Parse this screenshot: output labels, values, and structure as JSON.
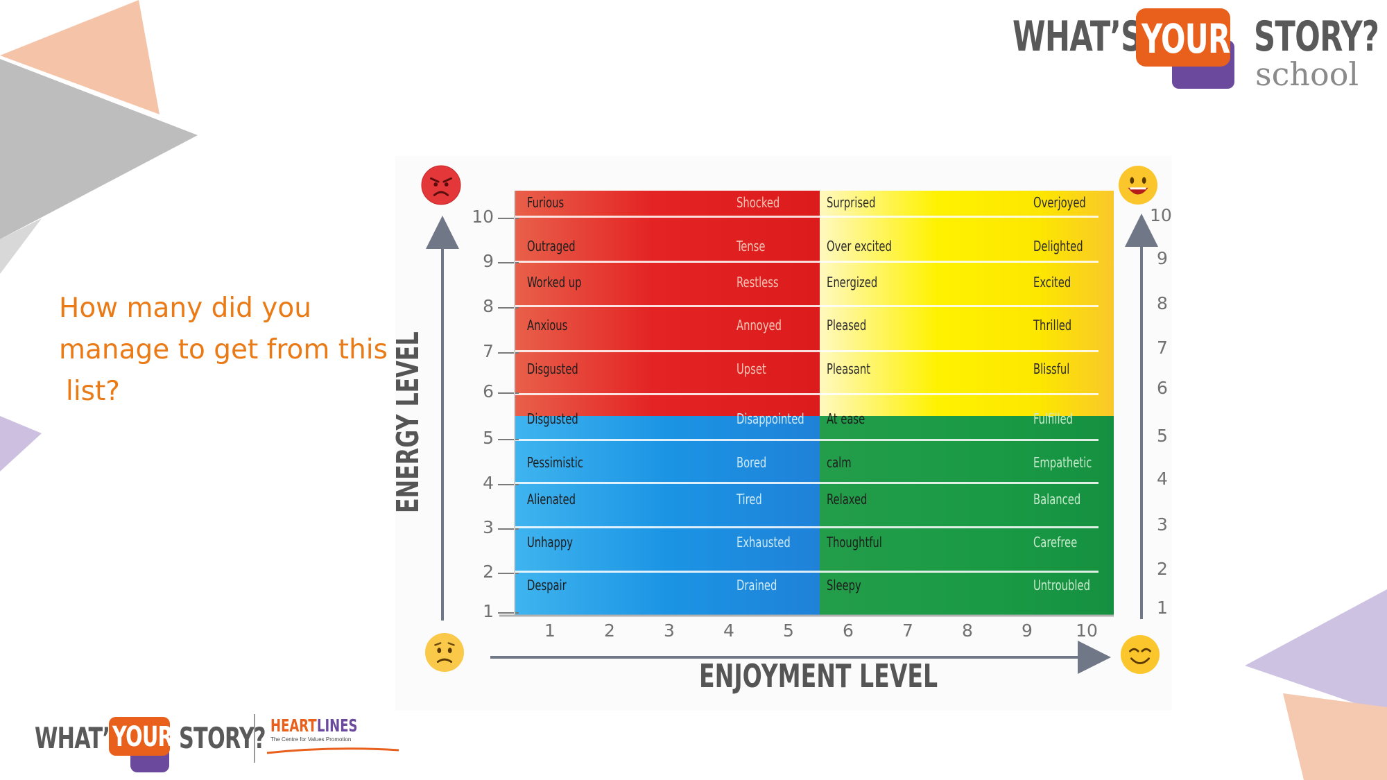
{
  "question": {
    "line1": "How many did you",
    "line2": "manage to get from this",
    "line3": "list?"
  },
  "logo_top": {
    "word1": "WHAT’S",
    "word2": "YOUR",
    "word3": "STORY?",
    "word4": "school"
  },
  "logo_bottom": {
    "word1": "WHAT’S",
    "word2": "YOUR",
    "word3": "STORY?",
    "heartlines_a": "HEART",
    "heartlines_b": "LINES",
    "tagline": "The Centre for Values Promotion"
  },
  "diagram": {
    "y_axis_label": "ENERGY LEVEL",
    "x_axis_label": "ENJOYMENT LEVEL",
    "y_ticks_left": [
      "10",
      "9",
      "8",
      "7",
      "6",
      "5",
      "4",
      "3",
      "2",
      "1"
    ],
    "y_ticks_right": [
      "10",
      "9",
      "8",
      "7",
      "6",
      "5",
      "4",
      "3",
      "2",
      "1"
    ],
    "x_ticks": [
      "1",
      "2",
      "3",
      "4",
      "5",
      "6",
      "7",
      "8",
      "9",
      "10"
    ],
    "rows": [
      {
        "a": "Furious",
        "b": "Shocked",
        "c": "Surprised",
        "d": "Overjoyed"
      },
      {
        "a": "Outraged",
        "b": "Tense",
        "c": "Over excited",
        "d": "Delighted"
      },
      {
        "a": "Worked up",
        "b": "Restless",
        "c": "Energized",
        "d": "Excited"
      },
      {
        "a": "Anxious",
        "b": "Annoyed",
        "c": "Pleased",
        "d": "Thrilled"
      },
      {
        "a": "Disgusted",
        "b": "Upset",
        "c": "Pleasant",
        "d": "Blissful"
      },
      {
        "a": "Disgusted",
        "b": "Disappointed",
        "c": "At ease",
        "d": "Fulfilled"
      },
      {
        "a": "Pessimistic",
        "b": "Bored",
        "c": "calm",
        "d": "Empathetic"
      },
      {
        "a": "Alienated",
        "b": "Tired",
        "c": "Relaxed",
        "d": "Balanced"
      },
      {
        "a": "Unhappy",
        "b": "Exhausted",
        "c": "Thoughtful",
        "d": "Carefree"
      },
      {
        "a": "Despair",
        "b": "Drained",
        "c": "Sleepy",
        "d": "Untroubled"
      }
    ],
    "quadrant_colors": {
      "high_energy_low_enjoyment": "#e42424",
      "high_energy_high_enjoyment": "#fff200",
      "low_energy_low_enjoyment": "#1b94e4",
      "low_energy_high_enjoyment": "#1a9a45"
    },
    "emojis": {
      "top_left": "angry-face",
      "top_right": "grinning-face",
      "bottom_left": "sad-face",
      "bottom_right": "smiling-face"
    }
  }
}
